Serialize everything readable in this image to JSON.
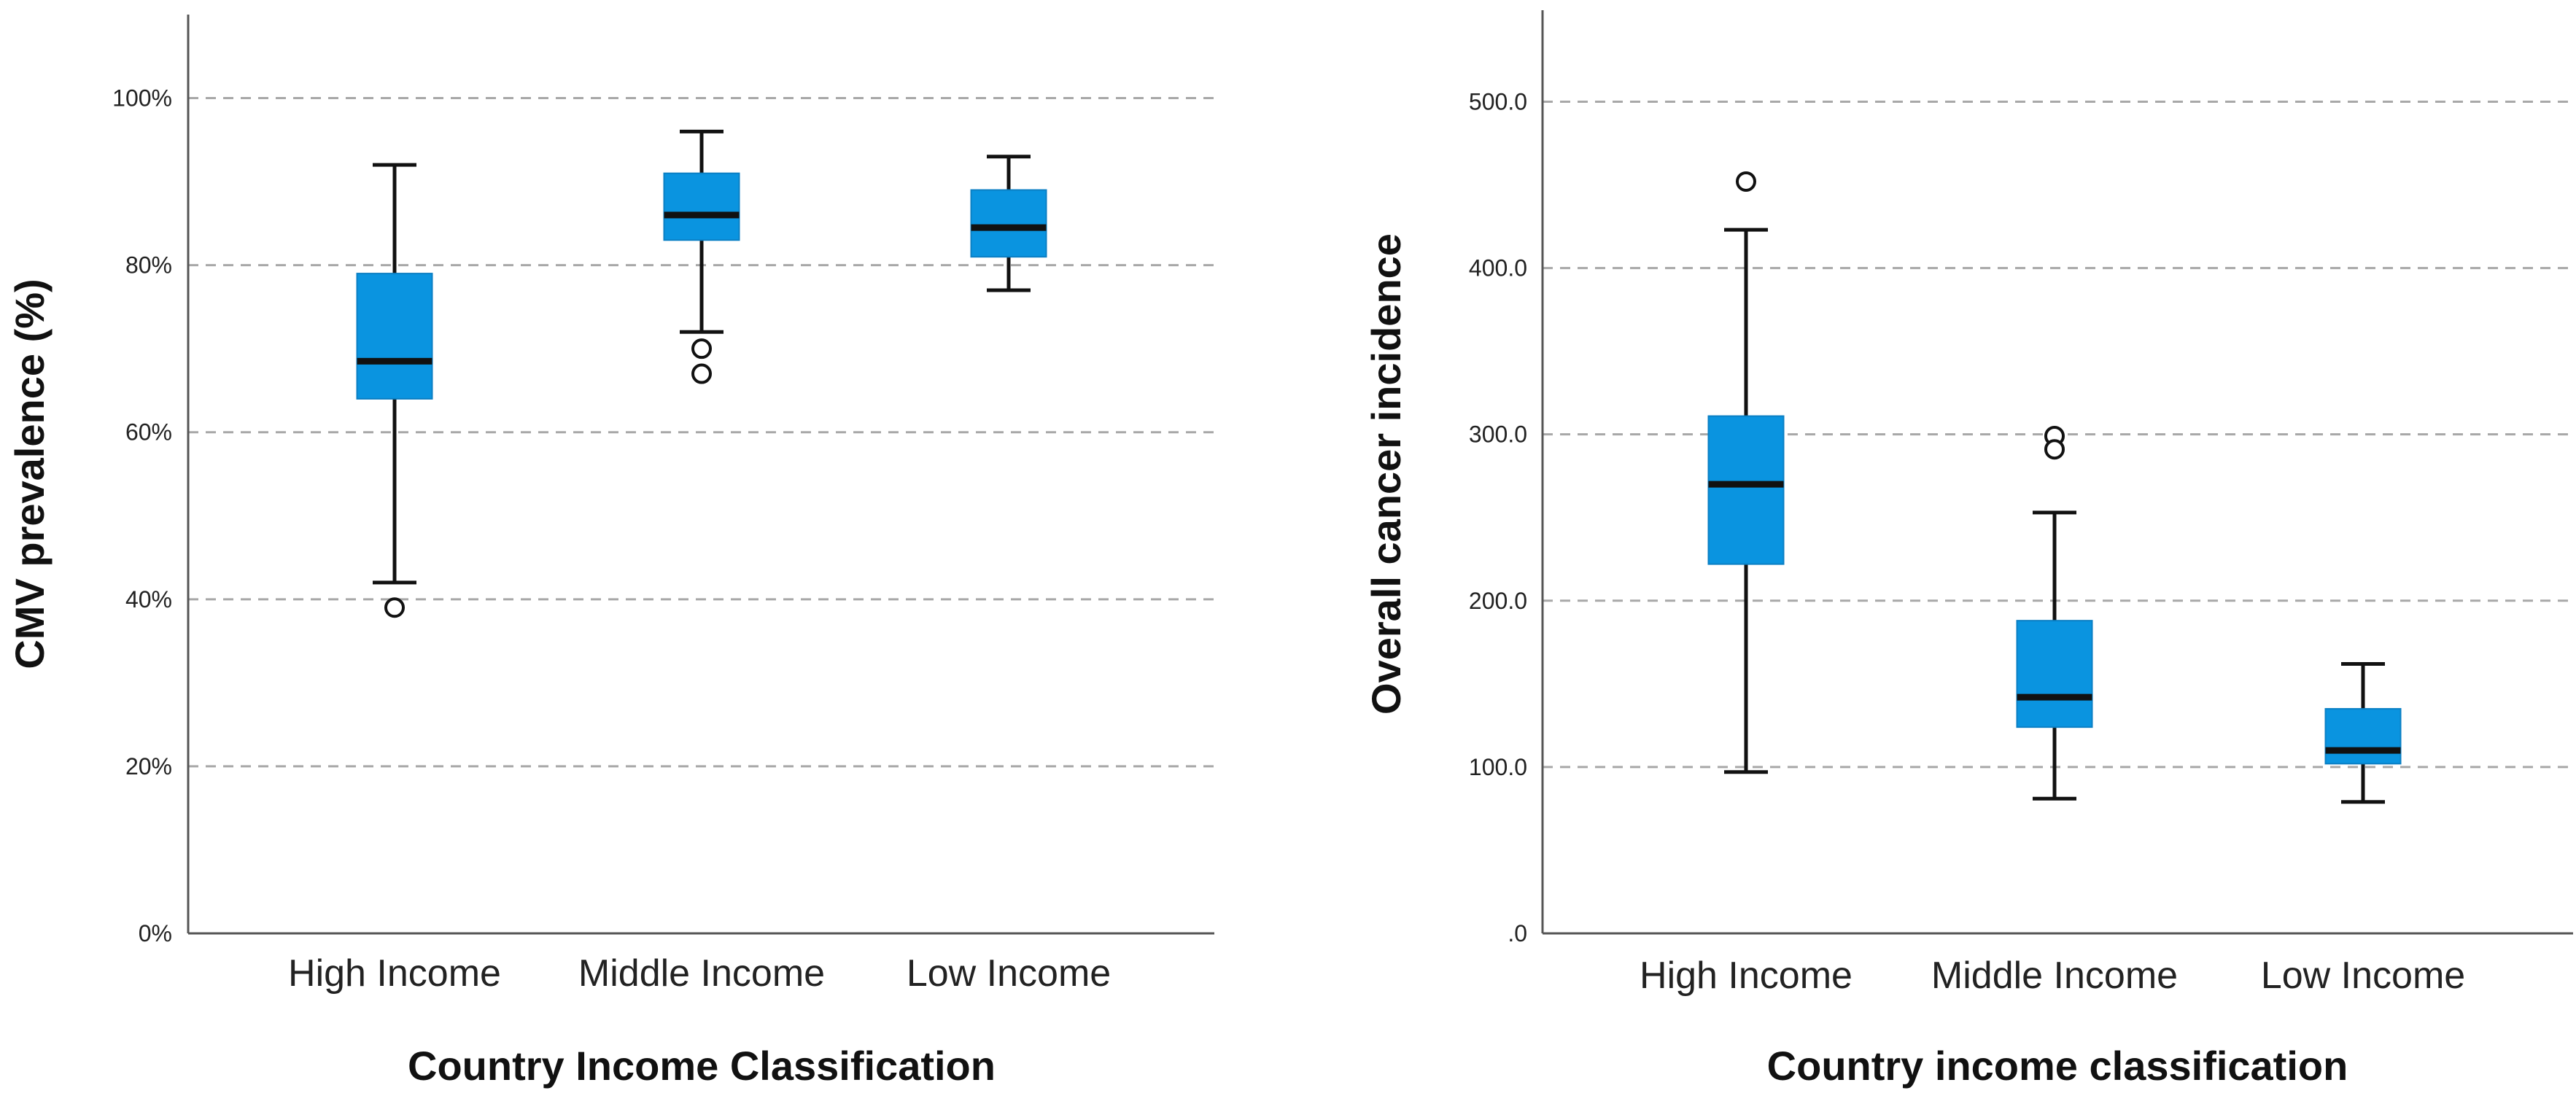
{
  "colors": {
    "box_fill": "#0a94e0",
    "grid": "#a8a8a8",
    "axis": "#555555"
  },
  "chart_data": [
    {
      "type": "boxplot",
      "title": "",
      "xlabel": "Country Income Classification",
      "ylabel": "CMV prevalence (%)",
      "ylim": [
        0,
        110
      ],
      "yticks": [
        0,
        20,
        40,
        60,
        80,
        100
      ],
      "ytick_labels": [
        "0%",
        "20%",
        "40%",
        "60%",
        "80%",
        "100%"
      ],
      "grid": true,
      "categories": [
        "High Income",
        "Middle Income",
        "Low Income"
      ],
      "boxes": [
        {
          "min": 42,
          "q1": 64,
          "median": 68.5,
          "q3": 79,
          "max": 92,
          "outliers": [
            39
          ]
        },
        {
          "min": 72,
          "q1": 83,
          "median": 86,
          "q3": 91,
          "max": 96,
          "outliers": [
            70,
            67
          ]
        },
        {
          "min": 77,
          "q1": 81,
          "median": 84.5,
          "q3": 89,
          "max": 93,
          "outliers": []
        }
      ]
    },
    {
      "type": "boxplot",
      "title": "",
      "xlabel": "Country income classification",
      "ylabel": "Overall cancer incidence",
      "ylim": [
        0,
        555
      ],
      "yticks": [
        0,
        100,
        200,
        300,
        400,
        500
      ],
      "ytick_labels": [
        ".0",
        "100.0",
        "200.0",
        "300.0",
        "400.0",
        "500.0"
      ],
      "grid": true,
      "categories": [
        "High Income",
        "Middle Income",
        "Low Income"
      ],
      "boxes": [
        {
          "min": 97,
          "q1": 222,
          "median": 270,
          "q3": 311,
          "max": 423,
          "outliers": [
            452
          ]
        },
        {
          "min": 81,
          "q1": 124,
          "median": 142,
          "q3": 188,
          "max": 253,
          "outliers": [
            299,
            291
          ]
        },
        {
          "min": 79,
          "q1": 102,
          "median": 110,
          "q3": 135,
          "max": 162,
          "outliers": []
        }
      ]
    }
  ]
}
